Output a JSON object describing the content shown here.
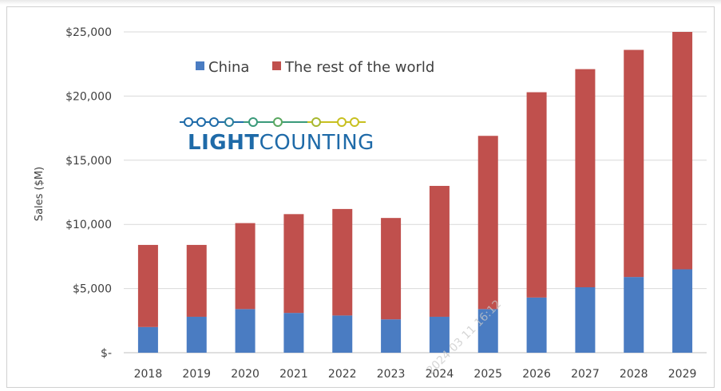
{
  "chart_data": {
    "type": "bar",
    "stacked": true,
    "categories": [
      "2018",
      "2019",
      "2020",
      "2021",
      "2022",
      "2023",
      "2024",
      "2025",
      "2026",
      "2027",
      "2028",
      "2029"
    ],
    "series": [
      {
        "name": "China",
        "color": "#4a7cc2",
        "values": [
          2000,
          2800,
          3400,
          3100,
          2900,
          2600,
          2800,
          3400,
          4300,
          5100,
          5900,
          6500
        ]
      },
      {
        "name": "The rest of the world",
        "color": "#c0504d",
        "values": [
          6400,
          5600,
          6700,
          7700,
          8300,
          7900,
          10200,
          13500,
          16000,
          17000,
          17700,
          18500
        ]
      }
    ],
    "ylabel": "Sales ($M)",
    "ylim": [
      0,
      25000
    ],
    "yticks": [
      "$-",
      "$5,000",
      "$10,000",
      "$15,000",
      "$20,000",
      "$25,000"
    ],
    "grid": true,
    "legend_position": "top-left"
  },
  "logo": {
    "text_bold": "LIGHT",
    "text_regular": "COUNTING"
  },
  "watermark": "2024 03 11 16:12"
}
